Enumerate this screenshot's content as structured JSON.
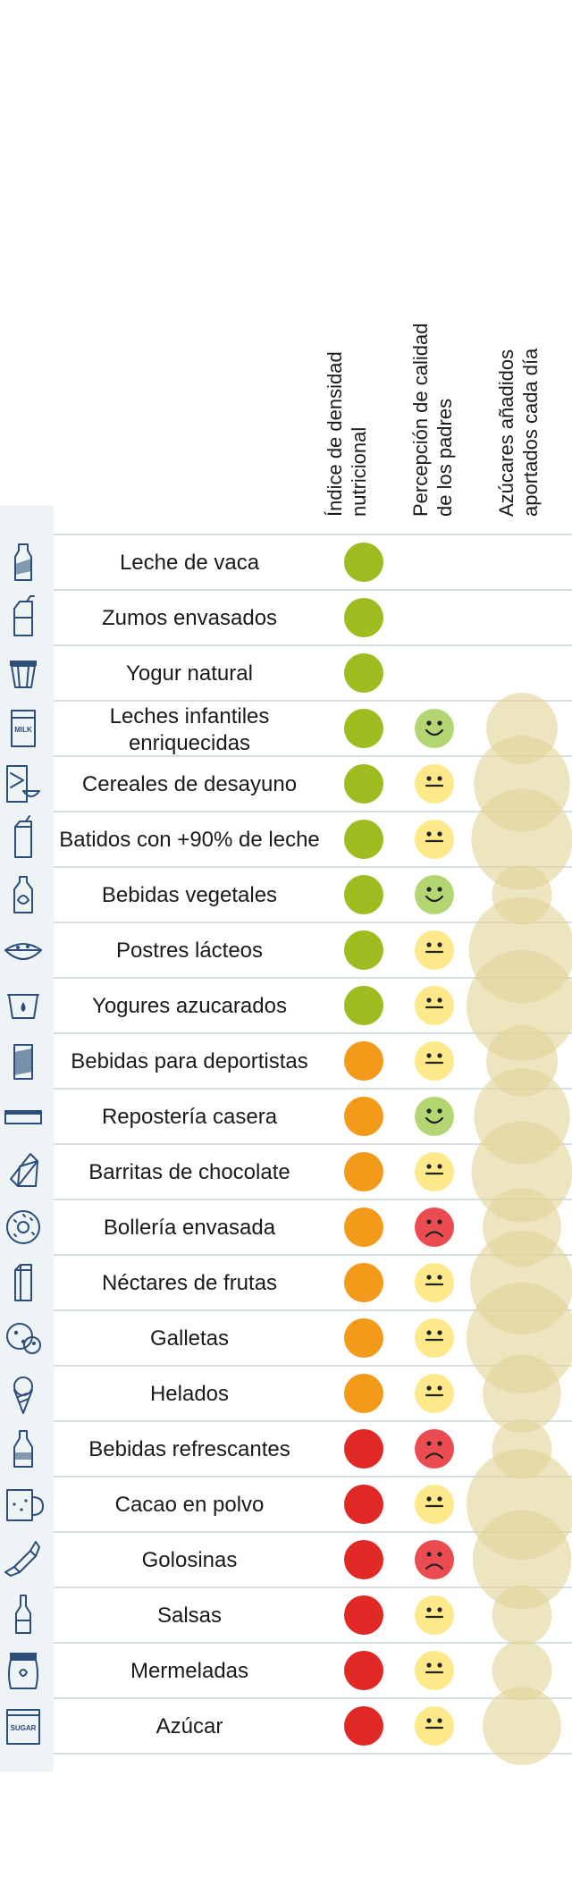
{
  "chart_data": {
    "type": "table",
    "columns": [
      [
        "Índice de densidad",
        "nutricional"
      ],
      [
        "Percepción de calidad",
        "de los padres"
      ],
      [
        "Azúcares añadidos",
        "aportados cada día"
      ]
    ],
    "legend": {
      "nutrient_colors": {
        "green": "#9cbc1f",
        "orange": "#f39a1b",
        "red": "#e02824"
      },
      "face_colors": {
        "happy": "#b3d672",
        "neutral": "#fde98a",
        "sad": "#ea4c52"
      },
      "bubble_color": "#e2d49a"
    },
    "rows": [
      {
        "label": [
          "Leche de vaca"
        ],
        "icon": "milk-bottle-icon",
        "nutrient": "green",
        "perception": null,
        "sugar": null
      },
      {
        "label": [
          "Zumos envasados"
        ],
        "icon": "juice-carton-icon",
        "nutrient": "green",
        "perception": null,
        "sugar": null
      },
      {
        "label": [
          "Yogur natural"
        ],
        "icon": "yogurt-icon",
        "nutrient": "green",
        "perception": null,
        "sugar": null
      },
      {
        "label": [
          "Leches infantiles",
          "enriquecidas"
        ],
        "icon": "milk-box-icon",
        "nutrient": "green",
        "perception": "happy",
        "sugar": 5
      },
      {
        "label": [
          "Cereales de desayuno"
        ],
        "icon": "cereal-box-icon",
        "nutrient": "green",
        "perception": "neutral",
        "sugar": 9
      },
      {
        "label": [
          "Batidos con +90% de leche"
        ],
        "icon": "shake-carton-icon",
        "nutrient": "green",
        "perception": "neutral",
        "sugar": 10
      },
      {
        "label": [
          "Bebidas vegetales"
        ],
        "icon": "plant-drink-bottle-icon",
        "nutrient": "green",
        "perception": "happy",
        "sugar": 3.5
      },
      {
        "label": [
          "Postres lácteos"
        ],
        "icon": "dessert-bowl-icon",
        "nutrient": "green",
        "perception": "neutral",
        "sugar": 11
      },
      {
        "label": [
          "Yogures azucarados"
        ],
        "icon": "sweet-yogurt-icon",
        "nutrient": "green",
        "perception": "neutral",
        "sugar": 12
      },
      {
        "label": [
          "Bebidas para deportistas"
        ],
        "icon": "sports-can-icon",
        "nutrient": "orange",
        "perception": "neutral",
        "sugar": 5
      },
      {
        "label": [
          "Repostería casera"
        ],
        "icon": "cake-icon",
        "nutrient": "orange",
        "perception": "happy",
        "sugar": 9
      },
      {
        "label": [
          "Barritas de chocolate"
        ],
        "icon": "chocolate-bar-icon",
        "nutrient": "orange",
        "perception": "neutral",
        "sugar": 10
      },
      {
        "label": [
          "Bollería envasada"
        ],
        "icon": "donut-icon",
        "nutrient": "orange",
        "perception": "sad",
        "sugar": 6
      },
      {
        "label": [
          "Néctares de frutas"
        ],
        "icon": "nectar-carton-icon",
        "nutrient": "orange",
        "perception": "neutral",
        "sugar": 10.5
      },
      {
        "label": [
          "Galletas"
        ],
        "icon": "cookie-icon",
        "nutrient": "orange",
        "perception": "neutral",
        "sugar": 12
      },
      {
        "label": [
          "Helados"
        ],
        "icon": "ice-cream-cone-icon",
        "nutrient": "orange",
        "perception": "neutral",
        "sugar": 6
      },
      {
        "label": [
          "Bebidas refrescantes"
        ],
        "icon": "soda-bottle-icon",
        "nutrient": "red",
        "perception": "sad",
        "sugar": 3.5
      },
      {
        "label": [
          "Cacao en polvo"
        ],
        "icon": "cocoa-mug-icon",
        "nutrient": "red",
        "perception": "neutral",
        "sugar": 12
      },
      {
        "label": [
          "Golosinas"
        ],
        "icon": "candy-icon",
        "nutrient": "red",
        "perception": "sad",
        "sugar": 9.5
      },
      {
        "label": [
          "Salsas"
        ],
        "icon": "sauce-bottle-icon",
        "nutrient": "red",
        "perception": "neutral",
        "sugar": 3.5
      },
      {
        "label": [
          "Mermeladas"
        ],
        "icon": "jam-jar-icon",
        "nutrient": "red",
        "perception": "neutral",
        "sugar": 3.5
      },
      {
        "label": [
          "Azúcar"
        ],
        "icon": "sugar-bag-icon",
        "nutrient": "red",
        "perception": "neutral",
        "sugar": 6
      }
    ],
    "icon_texts": {
      "milk_box": "MILK",
      "sugar_bag": "SUGAR"
    }
  }
}
